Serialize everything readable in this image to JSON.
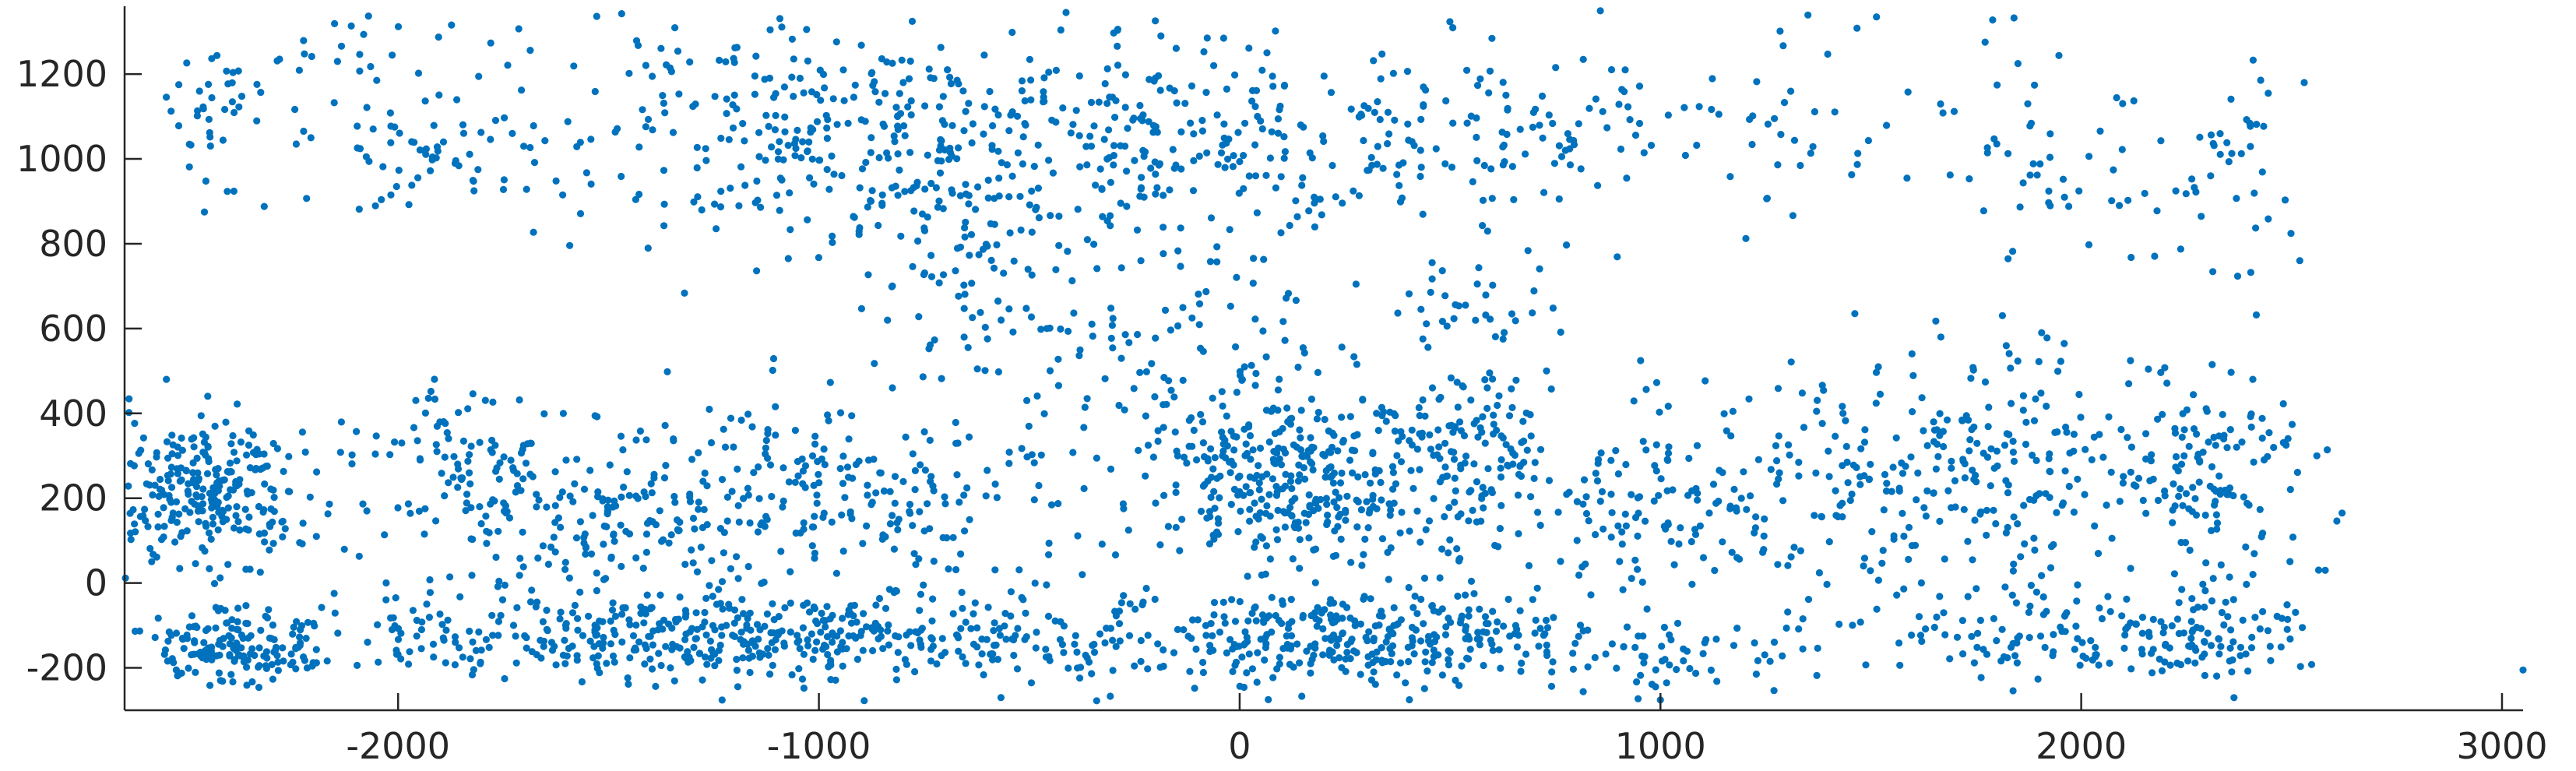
{
  "chart_data": {
    "type": "scatter",
    "title": "",
    "xlabel": "",
    "ylabel": "",
    "xlim": [
      -2650,
      3050
    ],
    "ylim": [
      -300,
      1360
    ],
    "x_ticks": [
      -2000,
      -1000,
      0,
      1000,
      2000,
      3000
    ],
    "y_ticks": [
      -200,
      0,
      200,
      400,
      600,
      800,
      1000,
      1200
    ],
    "x_tick_labels": [
      "-2000",
      "-1000",
      "0",
      "1000",
      "2000",
      "3000"
    ],
    "y_tick_labels": [
      "-200",
      "0",
      "200",
      "400",
      "600",
      "800",
      "1000",
      "1200"
    ],
    "grid": false,
    "legend": "none",
    "marker_color": "#0072BD",
    "clusters": [
      {
        "cx": -2450,
        "cy": 200,
        "sx": 110,
        "sy": 90,
        "n": 260
      },
      {
        "cx": -2400,
        "cy": -150,
        "sx": 100,
        "sy": 45,
        "n": 160
      },
      {
        "cx": -2420,
        "cy": 1100,
        "sx": 60,
        "sy": 90,
        "n": 40
      },
      {
        "cx": -2050,
        "cy": 1150,
        "sx": 180,
        "sy": 150,
        "n": 60
      },
      {
        "cx": -1900,
        "cy": 320,
        "sx": 150,
        "sy": 90,
        "n": 60
      },
      {
        "cx": -1550,
        "cy": 150,
        "sx": 260,
        "sy": 110,
        "n": 220
      },
      {
        "cx": -1500,
        "cy": -120,
        "sx": 300,
        "sy": 55,
        "n": 230
      },
      {
        "cx": -1850,
        "cy": 1000,
        "sx": 120,
        "sy": 80,
        "n": 40
      },
      {
        "cx": -1250,
        "cy": 1100,
        "sx": 250,
        "sy": 160,
        "n": 110
      },
      {
        "cx": -900,
        "cy": 1050,
        "sx": 200,
        "sy": 130,
        "n": 180
      },
      {
        "cx": -900,
        "cy": -130,
        "sx": 330,
        "sy": 55,
        "n": 260
      },
      {
        "cx": -900,
        "cy": 200,
        "sx": 300,
        "sy": 130,
        "n": 220
      },
      {
        "cx": -650,
        "cy": 800,
        "sx": 120,
        "sy": 220,
        "n": 100
      },
      {
        "cx": -300,
        "cy": 1050,
        "sx": 200,
        "sy": 150,
        "n": 140
      },
      {
        "cx": -150,
        "cy": 500,
        "sx": 220,
        "sy": 160,
        "n": 110
      },
      {
        "cx": 150,
        "cy": 250,
        "sx": 180,
        "sy": 100,
        "n": 330
      },
      {
        "cx": 100,
        "cy": -130,
        "sx": 250,
        "sy": 55,
        "n": 230
      },
      {
        "cx": 100,
        "cy": 1050,
        "sx": 230,
        "sy": 140,
        "n": 150
      },
      {
        "cx": 550,
        "cy": 300,
        "sx": 100,
        "sy": 150,
        "n": 140
      },
      {
        "cx": 500,
        "cy": -140,
        "sx": 200,
        "sy": 50,
        "n": 130
      },
      {
        "cx": 700,
        "cy": 1050,
        "sx": 180,
        "sy": 100,
        "n": 90
      },
      {
        "cx": 650,
        "cy": 650,
        "sx": 120,
        "sy": 80,
        "n": 25
      },
      {
        "cx": 1000,
        "cy": 200,
        "sx": 180,
        "sy": 110,
        "n": 100
      },
      {
        "cx": 1050,
        "cy": -150,
        "sx": 200,
        "sy": 55,
        "n": 60
      },
      {
        "cx": 1300,
        "cy": 250,
        "sx": 200,
        "sy": 130,
        "n": 90
      },
      {
        "cx": 1350,
        "cy": 1100,
        "sx": 150,
        "sy": 120,
        "n": 40
      },
      {
        "cx": 1600,
        "cy": 250,
        "sx": 150,
        "sy": 130,
        "n": 80
      },
      {
        "cx": 1750,
        "cy": -130,
        "sx": 200,
        "sy": 60,
        "n": 50
      },
      {
        "cx": 1900,
        "cy": 300,
        "sx": 150,
        "sy": 150,
        "n": 120
      },
      {
        "cx": 1900,
        "cy": 1050,
        "sx": 130,
        "sy": 130,
        "n": 50
      },
      {
        "cx": 2100,
        "cy": -130,
        "sx": 180,
        "sy": 60,
        "n": 90
      },
      {
        "cx": 2300,
        "cy": 250,
        "sx": 120,
        "sy": 130,
        "n": 140
      },
      {
        "cx": 2350,
        "cy": -120,
        "sx": 90,
        "sy": 55,
        "n": 50
      },
      {
        "cx": 2350,
        "cy": 1000,
        "sx": 100,
        "sy": 150,
        "n": 45
      }
    ],
    "outlier_points": [
      {
        "x": 3050,
        "y": -205
      },
      {
        "x": 2620,
        "y": 165
      },
      {
        "x": 2560,
        "y": 300
      },
      {
        "x": 2580,
        "y": 30
      },
      {
        "x": 2530,
        "y": 1180
      }
    ]
  }
}
